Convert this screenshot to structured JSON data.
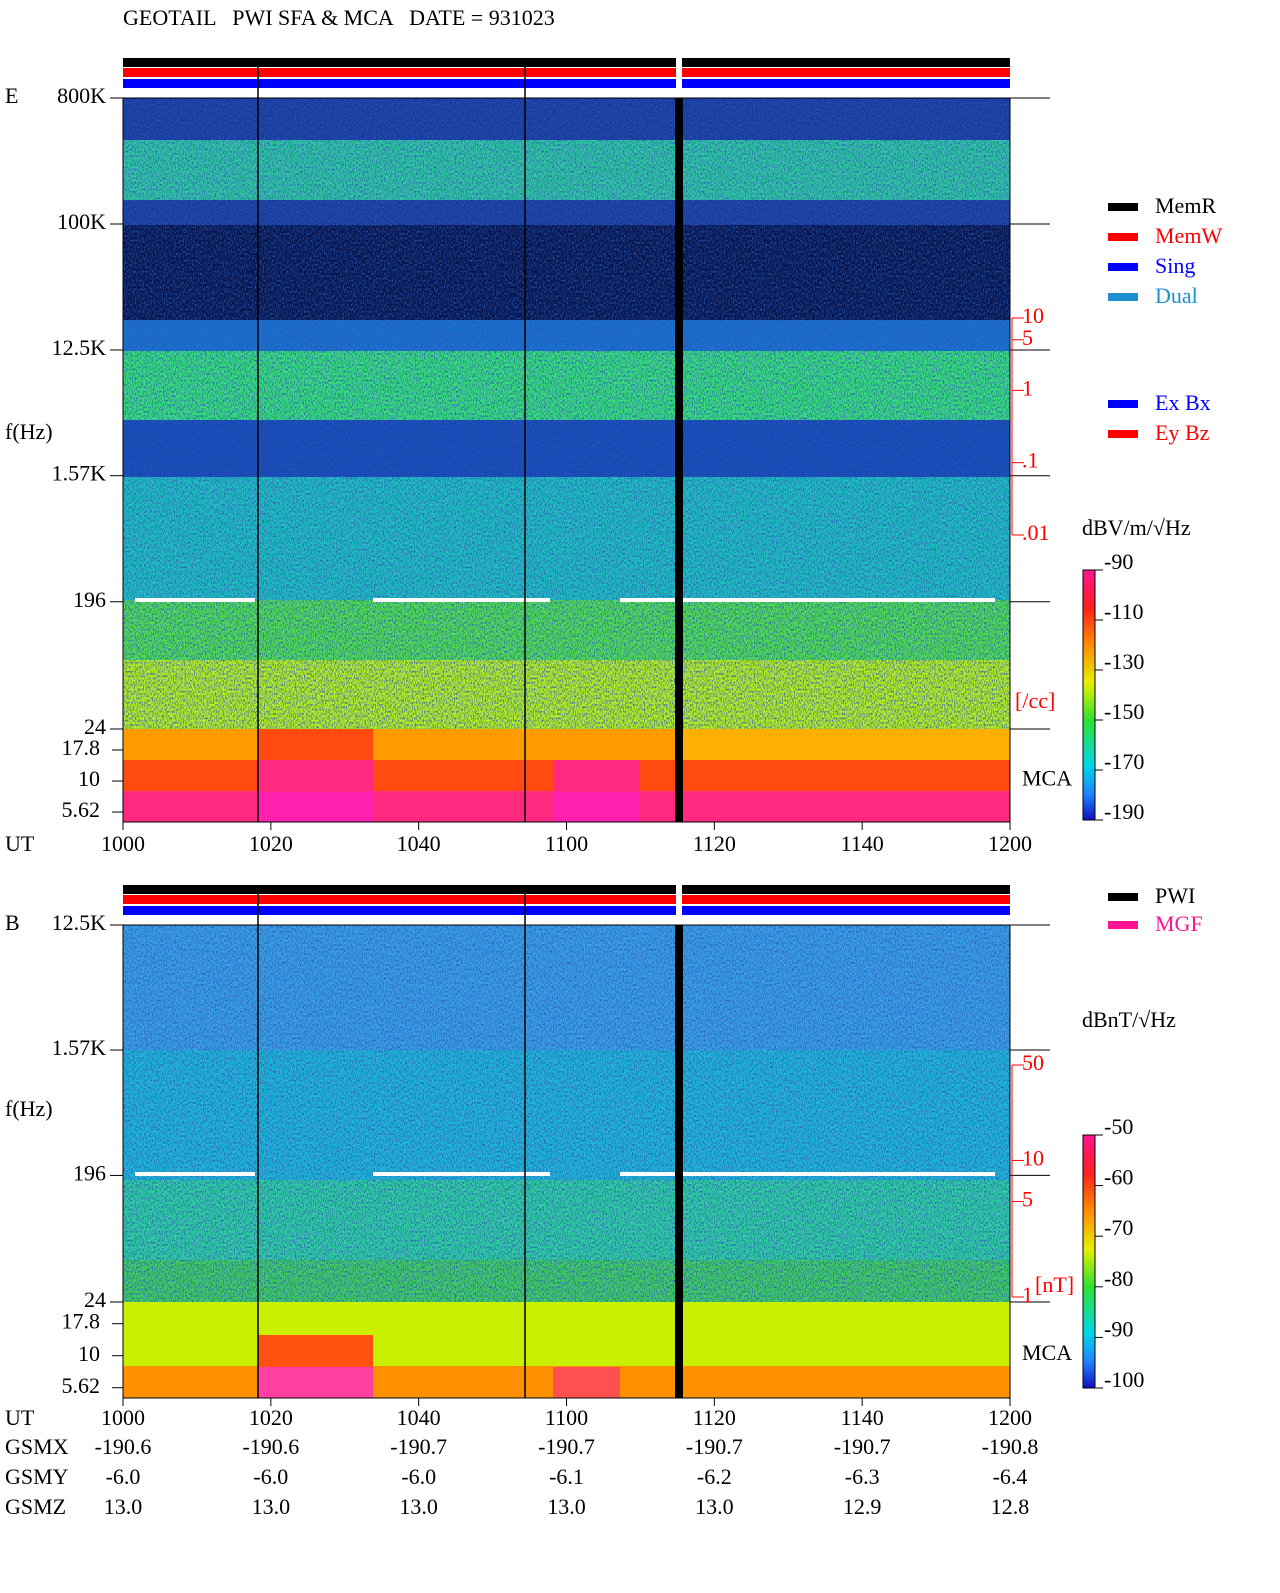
{
  "title": "GEOTAIL   PWI SFA & MCA   DATE = 931023",
  "chart_data": [
    {
      "type": "spectrogram",
      "panel": "E",
      "ylabel": "f(Hz)",
      "xlabel": "UT",
      "log_y": true,
      "ylim": [
        24,
        800000
      ],
      "yticks": [
        {
          "value": 800000,
          "label": "800K"
        },
        {
          "value": 100000,
          "label": "100K"
        },
        {
          "value": 12500,
          "label": "12.5K"
        },
        {
          "value": 1570,
          "label": "1.57K"
        },
        196,
        24
      ],
      "mca_label": "MCA",
      "mca_ylim": [
        4.67,
        26.3
      ],
      "mca_yticks": [
        17.8,
        10,
        5.62
      ],
      "xlim": [
        600,
        720
      ],
      "xticks": [
        {
          "value": 600,
          "label": "1000"
        },
        {
          "value": 620,
          "label": "1020"
        },
        {
          "value": 640,
          "label": "1040"
        },
        {
          "value": 660,
          "label": "1100"
        },
        {
          "value": 680,
          "label": "1120"
        },
        {
          "value": 700,
          "label": "1140"
        },
        {
          "value": 720,
          "label": "1200"
        }
      ],
      "y2label": "[/cc]",
      "y2_color": "#ff0000",
      "y2lim": [
        0.01,
        10
      ],
      "y2ticks": [
        10,
        5,
        1,
        {
          "value": 0.1,
          "label": ".1"
        },
        {
          "value": 0.01,
          "label": ".01"
        }
      ],
      "colorbar": {
        "label": "dBV/m/√Hz",
        "lim": [
          -190,
          -90
        ],
        "ticks": [
          -90,
          -110,
          -130,
          -150,
          -170,
          -190
        ]
      }
    },
    {
      "type": "spectrogram",
      "panel": "B",
      "ylabel": "f(Hz)",
      "xlabel": "UT",
      "log_y": true,
      "ylim": [
        24,
        12500
      ],
      "yticks": [
        {
          "value": 12500,
          "label": "12.5K"
        },
        {
          "value": 1570,
          "label": "1.57K"
        },
        196,
        24
      ],
      "mca_label": "MCA",
      "mca_ylim": [
        4.67,
        26.3
      ],
      "mca_yticks": [
        17.8,
        10,
        5.62
      ],
      "xlim": [
        600,
        720
      ],
      "xticks": [
        {
          "value": 600,
          "label": "1000"
        },
        {
          "value": 620,
          "label": "1020"
        },
        {
          "value": 640,
          "label": "1040"
        },
        {
          "value": 660,
          "label": "1100"
        },
        {
          "value": 680,
          "label": "1120"
        },
        {
          "value": 700,
          "label": "1140"
        },
        {
          "value": 720,
          "label": "1200"
        }
      ],
      "y2label": "[nT]",
      "y2_color": "#ff0000",
      "y2lim": [
        1,
        50
      ],
      "y2ticks": [
        50,
        10,
        5,
        1
      ],
      "colorbar": {
        "label": "dBnT/√Hz",
        "lim": [
          -100,
          -50
        ],
        "ticks": [
          -50,
          -60,
          -70,
          -80,
          -90,
          -100
        ]
      }
    }
  ],
  "legends": [
    {
      "items": [
        {
          "name": "MemR",
          "color": "#000000"
        },
        {
          "name": "MemW",
          "color": "#ff0000"
        },
        {
          "name": "Sing",
          "color": "#0000ff"
        },
        {
          "name": "Dual",
          "color": "#1e8fd0"
        }
      ]
    },
    {
      "items": [
        {
          "name": "Ex Bx",
          "color": "#0000ff"
        },
        {
          "name": "Ey Bz",
          "color": "#ff0000"
        }
      ]
    },
    {
      "items": [
        {
          "name": "PWI",
          "color": "#000000"
        },
        {
          "name": "MGF",
          "color": "#ff1493"
        }
      ]
    }
  ],
  "orbit": {
    "rows": [
      {
        "label": "GSMX",
        "values": [
          "-190.6",
          "-190.6",
          "-190.7",
          "-190.7",
          "-190.7",
          "-190.7",
          "-190.8"
        ]
      },
      {
        "label": "GSMY",
        "values": [
          "-6.0",
          "-6.0",
          "-6.0",
          "-6.1",
          "-6.2",
          "-6.3",
          "-6.4"
        ]
      },
      {
        "label": "GSMZ",
        "values": [
          "13.0",
          "13.0",
          "13.0",
          "13.0",
          "13.0",
          "12.9",
          "12.8"
        ]
      }
    ]
  }
}
